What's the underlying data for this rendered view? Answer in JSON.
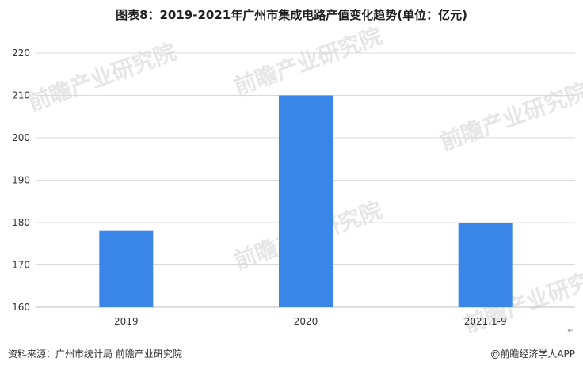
{
  "chart_data": {
    "type": "bar",
    "title": "图表8：2019-2021年广州市集成电路产值变化趋势(单位：亿元)",
    "categories": [
      "2019",
      "2020",
      "2021.1-9"
    ],
    "values": [
      178,
      210,
      180
    ],
    "ylim": [
      160,
      220
    ],
    "yticks": [
      160,
      170,
      180,
      190,
      200,
      210,
      220
    ],
    "xlabel": "",
    "ylabel": "",
    "grid": true,
    "bar_color": "#3a86e8"
  },
  "watermark": "前瞻产业研究院",
  "footer": {
    "source": "资料来源：广州市统计局 前瞻产业研究院",
    "brand": "@前瞻经济学人APP",
    "return_mark": "↵"
  }
}
